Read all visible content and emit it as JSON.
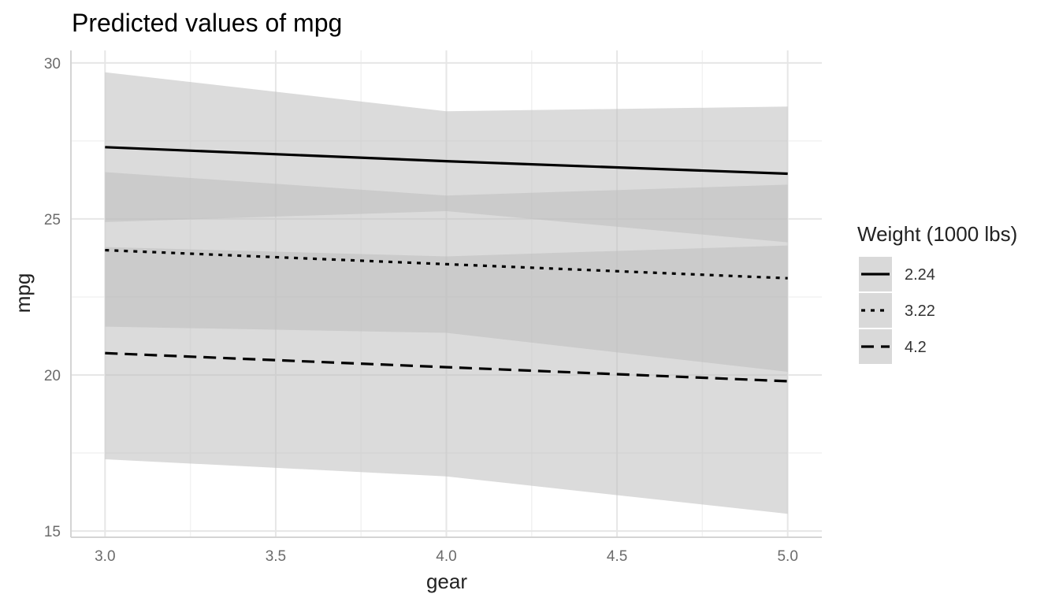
{
  "chart_data": {
    "type": "line",
    "title": "Predicted values of mpg",
    "xlabel": "gear",
    "ylabel": "mpg",
    "xlim": [
      2.9,
      5.1
    ],
    "ylim": [
      14.8,
      30.4
    ],
    "x_ticks": [
      "3.0",
      "3.5",
      "4.0",
      "4.5",
      "5.0"
    ],
    "y_ticks": [
      "15",
      "20",
      "25",
      "30"
    ],
    "grid": true,
    "legend_title": "Weight (1000 lbs)",
    "legend_position": "right",
    "x": [
      3,
      4,
      5
    ],
    "series": [
      {
        "name": "2.24",
        "linetype": "solid",
        "values": [
          27.3,
          26.85,
          26.45
        ],
        "lower": [
          24.9,
          25.25,
          24.25
        ],
        "upper": [
          29.7,
          28.45,
          28.6
        ]
      },
      {
        "name": "3.22",
        "linetype": "dotted",
        "values": [
          24.0,
          23.55,
          23.1
        ],
        "lower": [
          21.55,
          21.35,
          20.1
        ],
        "upper": [
          26.5,
          25.75,
          26.1
        ]
      },
      {
        "name": "4.2",
        "linetype": "dashed",
        "values": [
          20.7,
          20.25,
          19.8
        ],
        "lower": [
          17.3,
          16.75,
          15.55
        ],
        "upper": [
          24.1,
          23.8,
          24.15
        ]
      }
    ],
    "colors": {
      "line": "#000000",
      "ribbon": "#bdbdbd",
      "grid_major": "#e6e6e6",
      "grid_minor": "#f2f2f2"
    }
  }
}
